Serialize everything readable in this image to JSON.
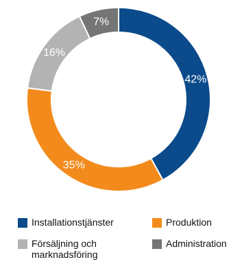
{
  "chart_data": {
    "type": "pie",
    "style": "donut",
    "categories": [
      "Installationstjänster",
      "Produktion",
      "Försäljning och marknadsföring",
      "Administration"
    ],
    "values": [
      42,
      35,
      16,
      7
    ],
    "value_labels": [
      "42%",
      "35%",
      "16%",
      "7%"
    ],
    "colors": [
      "#0b4a8b",
      "#f38b1c",
      "#b3b3b3",
      "#757575"
    ],
    "label_colors": [
      "#ffffff",
      "#ffffff",
      "#ffffff",
      "#ffffff"
    ],
    "legend_position": "bottom"
  }
}
